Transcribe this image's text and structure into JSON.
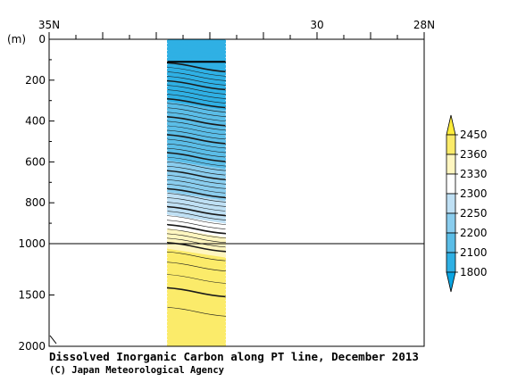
{
  "chart_data": {
    "type": "heatmap",
    "title": "Dissolved Inorganic Carbon along PT line, December 2013",
    "credit": "(C) Japan Meteorological Agency",
    "x_axis": {
      "labels": [
        "35N",
        "30",
        "28N"
      ],
      "label_values": [
        35,
        30,
        28
      ],
      "range": [
        35,
        28
      ],
      "data_range": [
        32.8,
        31.7
      ]
    },
    "y_axis": {
      "unit_label": "(m)",
      "upper_ticks": [
        0,
        200,
        400,
        600,
        800,
        1000
      ],
      "lower_ticks": [
        1500,
        2000
      ],
      "upper_range": [
        0,
        1000
      ],
      "lower_range": [
        1000,
        2000
      ],
      "scale_break_depth": 1000
    },
    "colorbar": {
      "levels": [
        1800,
        2100,
        2200,
        2250,
        2300,
        2330,
        2360,
        2450
      ],
      "colors": [
        "#0aa5e2",
        "#2fb0e4",
        "#5bbde7",
        "#8acdee",
        "#bfe0f4",
        "#ffffff",
        "#fff6c0",
        "#fbeb6a",
        "#ffed3a"
      ]
    },
    "depth_profile": [
      {
        "depth": 0,
        "value": 2040
      },
      {
        "depth": 120,
        "value": 2080
      },
      {
        "depth": 300,
        "value": 2090
      },
      {
        "depth": 350,
        "value": 2120
      },
      {
        "depth": 450,
        "value": 2160
      },
      {
        "depth": 550,
        "value": 2190
      },
      {
        "depth": 650,
        "value": 2215
      },
      {
        "depth": 740,
        "value": 2240
      },
      {
        "depth": 820,
        "value": 2270
      },
      {
        "depth": 890,
        "value": 2310
      },
      {
        "depth": 950,
        "value": 2340
      },
      {
        "depth": 1000,
        "value": 2355
      },
      {
        "depth": 1200,
        "value": 2370
      },
      {
        "depth": 1400,
        "value": 2400
      },
      {
        "depth": 2000,
        "value": 2440
      }
    ]
  }
}
